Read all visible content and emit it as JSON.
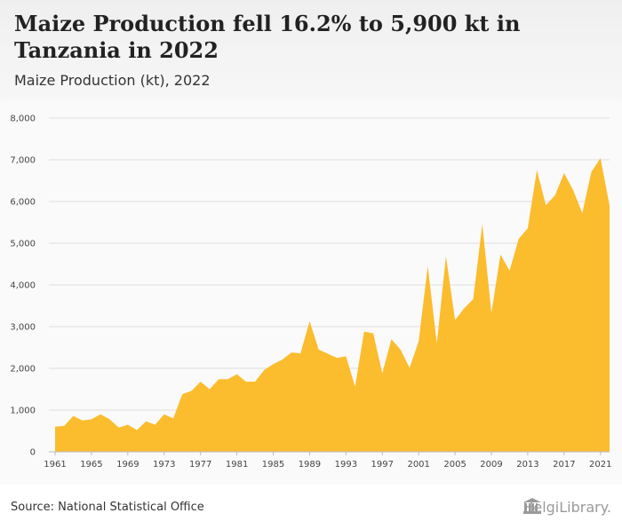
{
  "header": {
    "title": "Maize Production fell 16.2% to 5,900 kt in Tanzania in 2022",
    "subtitle": "Maize Production (kt), 2022"
  },
  "footer": {
    "source": "Source: National Statistical Office",
    "logo": "HelgiLibrary."
  },
  "colors": {
    "area": "#fbbc2e",
    "grid": "#dddddd"
  },
  "chart_data": {
    "type": "area",
    "title": "",
    "xlabel": "",
    "ylabel": "",
    "ylim": [
      0,
      8000
    ],
    "yticks": [
      "0",
      "1,000",
      "2,000",
      "3,000",
      "4,000",
      "5,000",
      "6,000",
      "7,000",
      "8,000"
    ],
    "xticks": [
      "1961",
      "1965",
      "1969",
      "1973",
      "1977",
      "1981",
      "1985",
      "1989",
      "1993",
      "1997",
      "2001",
      "2005",
      "2009",
      "2013",
      "2017",
      "2021"
    ],
    "x": [
      1961,
      1962,
      1963,
      1964,
      1965,
      1966,
      1967,
      1968,
      1969,
      1970,
      1971,
      1972,
      1973,
      1974,
      1975,
      1976,
      1977,
      1978,
      1979,
      1980,
      1981,
      1982,
      1983,
      1984,
      1985,
      1986,
      1987,
      1988,
      1989,
      1990,
      1991,
      1992,
      1993,
      1994,
      1995,
      1996,
      1997,
      1998,
      1999,
      2000,
      2001,
      2002,
      2003,
      2004,
      2005,
      2006,
      2007,
      2008,
      2009,
      2010,
      2011,
      2012,
      2013,
      2014,
      2015,
      2016,
      2017,
      2018,
      2019,
      2020,
      2021,
      2022
    ],
    "series": [
      {
        "values": [
          600,
          620,
          860,
          750,
          780,
          900,
          780,
          580,
          650,
          520,
          730,
          650,
          900,
          800,
          1380,
          1460,
          1680,
          1500,
          1740,
          1740,
          1860,
          1680,
          1680,
          1960,
          2100,
          2210,
          2380,
          2360,
          3130,
          2450,
          2350,
          2250,
          2290,
          1560,
          2880,
          2840,
          1880,
          2700,
          2450,
          2010,
          2650,
          4450,
          2600,
          4690,
          3160,
          3440,
          3660,
          5460,
          3330,
          4730,
          4340,
          5100,
          5360,
          6750,
          5910,
          6150,
          6680,
          6270,
          5720,
          6710,
          7040,
          5900
        ]
      }
    ],
    "grid": true,
    "legend": "none"
  }
}
